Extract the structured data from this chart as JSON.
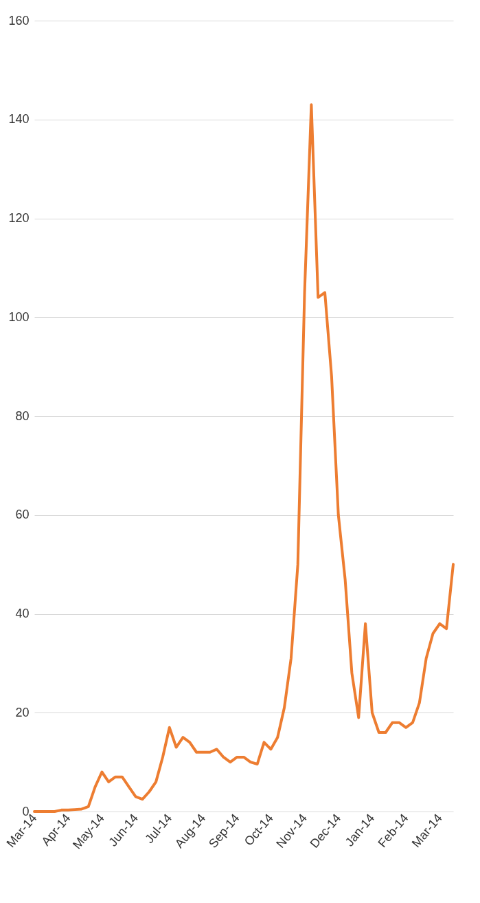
{
  "chart_data": {
    "type": "line",
    "categories": [
      "Mar-14",
      null,
      null,
      null,
      null,
      "Apr-14",
      null,
      null,
      null,
      null,
      "May-14",
      null,
      null,
      null,
      null,
      "Jun-14",
      null,
      null,
      null,
      null,
      "Jul-14",
      null,
      null,
      null,
      null,
      "Aug-14",
      null,
      null,
      null,
      null,
      "Sep-14",
      null,
      null,
      null,
      null,
      "Oct-14",
      null,
      null,
      null,
      null,
      "Nov-14",
      null,
      null,
      null,
      null,
      "Dec-14",
      null,
      null,
      null,
      null,
      "Jan-14",
      null,
      null,
      null,
      null,
      "Feb-14",
      null,
      null,
      null,
      null,
      "Mar-14",
      null,
      null
    ],
    "series": [
      {
        "color": "#ed7d31",
        "values": [
          0,
          0,
          0,
          0,
          0.3,
          0.3,
          0.4,
          0.5,
          1,
          5,
          8,
          6,
          7,
          7,
          5,
          3,
          2.5,
          4,
          6,
          11,
          17,
          13,
          15,
          14,
          12,
          12,
          12,
          12.6,
          11,
          10,
          11,
          11,
          10,
          9.6,
          14,
          12.6,
          15,
          21,
          31,
          50,
          105,
          143,
          104,
          105,
          88,
          60,
          47,
          28,
          19,
          38,
          20,
          16,
          16,
          18,
          18,
          17,
          18,
          22,
          31,
          36,
          38,
          37,
          50
        ]
      }
    ],
    "ylim": [
      0,
      160
    ],
    "yticks": [
      0,
      20,
      40,
      60,
      80,
      100,
      120,
      140,
      160
    ],
    "grid": "y",
    "line_style": "solid"
  }
}
